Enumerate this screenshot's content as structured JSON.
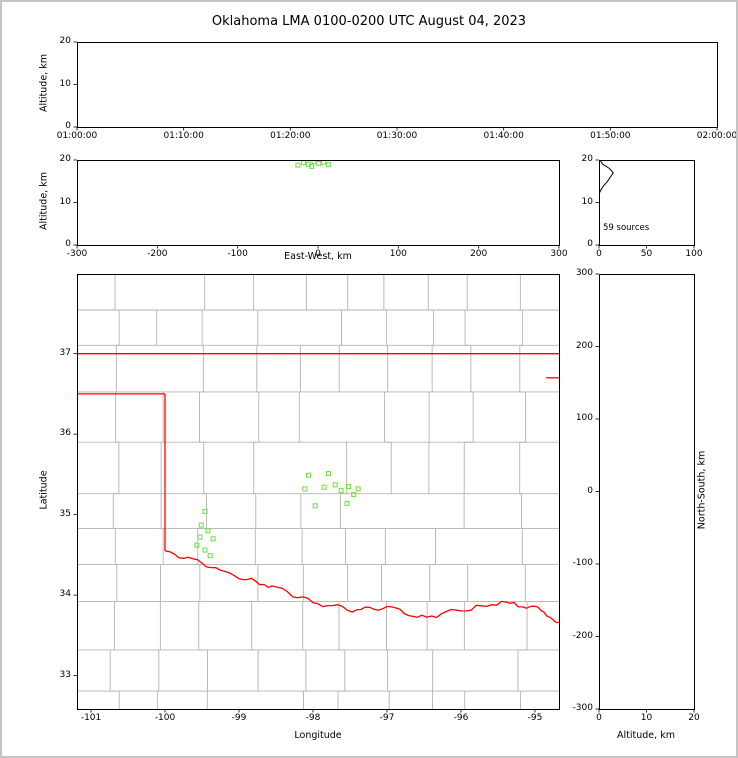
{
  "title": "Oklahoma LMA 0100-0200 UTC August 04, 2023",
  "panels": {
    "time_height": {
      "ylabel": "Altitude, km",
      "yticks": [
        "20",
        "10",
        "0"
      ],
      "xticks": [
        "01:00:00",
        "01:10:00",
        "01:20:00",
        "01:30:00",
        "01:40:00",
        "01:50:00",
        "02:00:00"
      ]
    },
    "ew_height": {
      "ylabel": "Altitude, km",
      "xlabel": "East-West, km",
      "yticks": [
        "20",
        "10",
        "0"
      ],
      "xticks": [
        "-300",
        "-200",
        "-100",
        "0",
        "100",
        "200",
        "300"
      ]
    },
    "alt_histogram": {
      "yticks": [
        "20",
        "10",
        "0"
      ],
      "xticks": [
        "0",
        "50",
        "100"
      ],
      "annotation": "59 sources"
    },
    "plan_view": {
      "ylabel": "Latitude",
      "xlabel": "Longitude",
      "xticks": [
        "-101",
        "-100",
        "-99",
        "-98",
        "-97",
        "-96",
        "-95"
      ],
      "yticks": [
        "37",
        "36",
        "35",
        "34",
        "33"
      ]
    },
    "ns_height": {
      "ylabel": "North-South, km",
      "xlabel": "Altitude, km",
      "xticks": [
        "0",
        "10",
        "20"
      ],
      "yticks": [
        "300",
        "200",
        "100",
        "0",
        "-100",
        "-200",
        "-300"
      ]
    }
  },
  "chart_data": {
    "type": "scatter",
    "title": "Oklahoma LMA 0100-0200 UTC August 04, 2023",
    "total_sources": 59,
    "colors": {
      "source_marker": "#79e14e",
      "state_border": "#ff0000",
      "county_border": "#b3b3b3",
      "frame": "#000000"
    },
    "time_height": {
      "x_range": [
        "01:00:00",
        "02:00:00"
      ],
      "y_range_km": [
        0,
        20
      ],
      "points": []
    },
    "ew_height": {
      "x_range_km": [
        -300,
        300
      ],
      "y_range_km": [
        0,
        20
      ],
      "points_ew_alt": [
        [
          -25,
          18.8
        ],
        [
          -18,
          19.4
        ],
        [
          -12,
          19.0
        ],
        [
          -8,
          18.5
        ],
        [
          -5,
          19.6
        ],
        [
          1,
          19.2
        ],
        [
          7,
          19.5
        ],
        [
          13,
          18.9
        ]
      ]
    },
    "alt_histogram": {
      "x_range_sources": [
        0,
        100
      ],
      "y_range_km": [
        0,
        20
      ],
      "profile_alt_count": [
        [
          12,
          0
        ],
        [
          13,
          2
        ],
        [
          14,
          5
        ],
        [
          15,
          9
        ],
        [
          16,
          12
        ],
        [
          17,
          15
        ],
        [
          18,
          11
        ],
        [
          19,
          4
        ],
        [
          20,
          1
        ]
      ]
    },
    "ns_height": {
      "x_range_km": [
        0,
        20
      ],
      "y_range_km": [
        -300,
        300
      ],
      "points": []
    },
    "plan_view": {
      "lon_range": [
        -101.19,
        -94.675
      ],
      "lat_range": [
        32.585,
        37.99
      ],
      "lon_ticks": [
        -101,
        -100,
        -99,
        -98,
        -97,
        -96,
        -95
      ],
      "lat_ticks": [
        37,
        36,
        35,
        34,
        33
      ],
      "sources_lon_lat": [
        [
          -99.46,
          35.04
        ],
        [
          -99.51,
          34.87
        ],
        [
          -99.42,
          34.8
        ],
        [
          -99.53,
          34.72
        ],
        [
          -99.35,
          34.7
        ],
        [
          -99.57,
          34.62
        ],
        [
          -99.46,
          34.56
        ],
        [
          -99.39,
          34.49
        ],
        [
          -98.06,
          35.49
        ],
        [
          -97.79,
          35.51
        ],
        [
          -98.11,
          35.32
        ],
        [
          -97.85,
          35.34
        ],
        [
          -97.7,
          35.37
        ],
        [
          -97.62,
          35.3
        ],
        [
          -97.52,
          35.35
        ],
        [
          -97.39,
          35.32
        ],
        [
          -97.97,
          35.11
        ],
        [
          -97.54,
          35.14
        ],
        [
          -97.45,
          35.25
        ]
      ],
      "state_border_lon_lat": {
        "oklahoma_kansas_border": [
          [
            -101.19,
            37.0
          ],
          [
            -94.675,
            37.0
          ]
        ],
        "panhandle_south_border": [
          [
            -101.19,
            36.5
          ],
          [
            -100.0,
            36.5
          ]
        ],
        "oklahoma_texas_west_border": [
          [
            -100.0,
            36.5
          ],
          [
            -100.0,
            34.55
          ]
        ],
        "red_river_south_border": [
          [
            -100.0,
            34.55
          ],
          [
            -99.5,
            34.4
          ],
          [
            -99.0,
            34.22
          ],
          [
            -98.55,
            34.1
          ],
          [
            -98.0,
            33.91
          ],
          [
            -97.47,
            33.81
          ],
          [
            -97.0,
            33.85
          ],
          [
            -96.53,
            33.72
          ],
          [
            -96.0,
            33.81
          ],
          [
            -95.45,
            33.91
          ],
          [
            -95.0,
            33.85
          ],
          [
            -94.675,
            33.66
          ]
        ],
        "east_border_segment": [
          [
            -94.85,
            36.7
          ],
          [
            -94.675,
            36.7
          ]
        ]
      }
    }
  }
}
